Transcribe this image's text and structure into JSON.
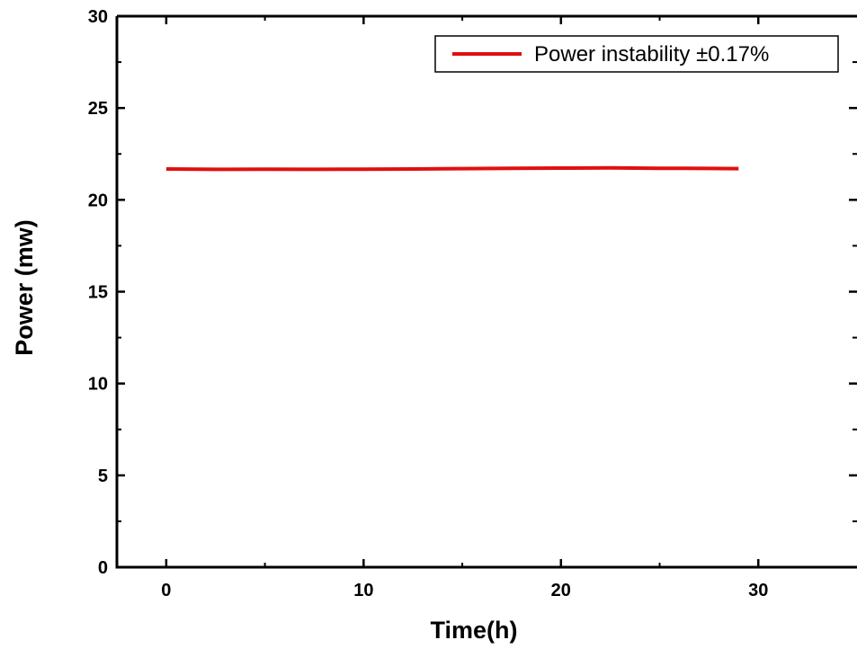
{
  "chart_data": {
    "type": "line",
    "title": "",
    "xlabel": "Time(h)",
    "ylabel": "Power (mw)",
    "xlim": [
      -2.5,
      35
    ],
    "ylim": [
      0,
      30
    ],
    "x_ticks": [
      0,
      10,
      20,
      30
    ],
    "y_ticks": [
      0,
      5,
      10,
      15,
      20,
      25,
      30
    ],
    "x_minor_step": 5,
    "y_minor_step": 2.5,
    "grid": false,
    "legend_position": "top-right",
    "series": [
      {
        "name": "Power instability ±0.17%",
        "color": "#e01010",
        "x": [
          0,
          2.5,
          5,
          7.5,
          10,
          12.5,
          15,
          17.5,
          20,
          22.5,
          25,
          27.5,
          29
        ],
        "y": [
          21.68,
          21.66,
          21.67,
          21.66,
          21.67,
          21.68,
          21.7,
          21.72,
          21.73,
          21.74,
          21.72,
          21.71,
          21.7
        ]
      }
    ]
  }
}
